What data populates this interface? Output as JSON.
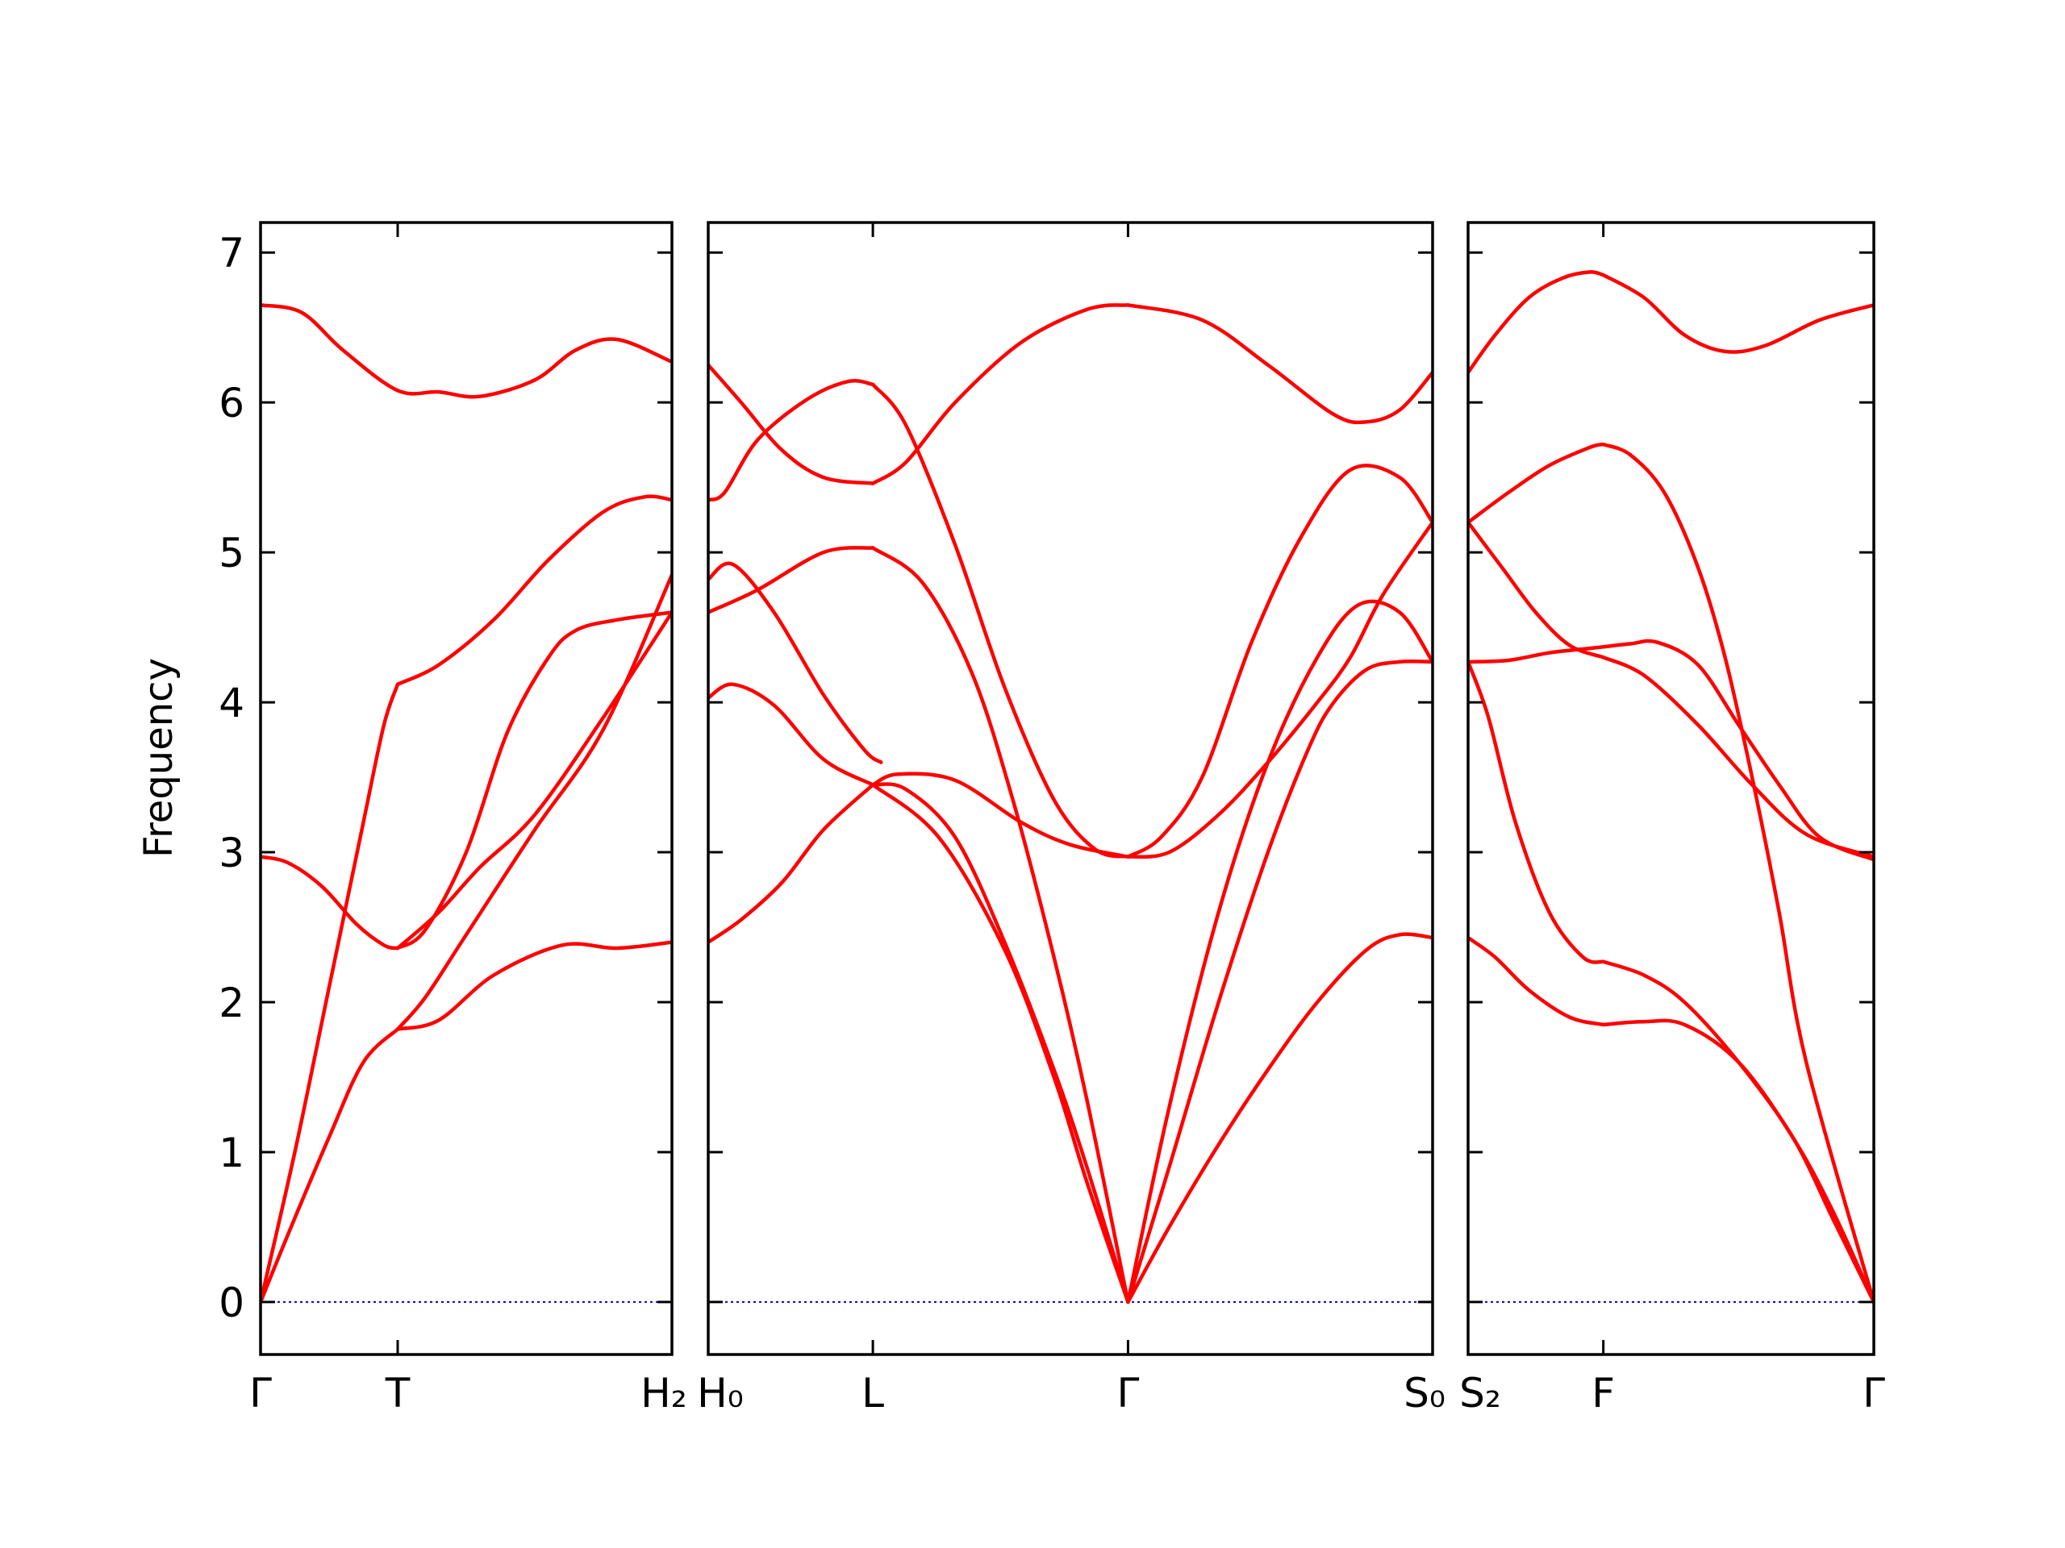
{
  "chart_data": {
    "type": "line",
    "ylabel": "Frequency",
    "ylim": [
      -0.35,
      7.2
    ],
    "yticks": [
      "0",
      "1",
      "2",
      "3",
      "4",
      "5",
      "6",
      "7"
    ],
    "line_color": "#ff0000",
    "zero_line_color": "#0000cc",
    "panels": [
      {
        "xlim": [
          0,
          3
        ],
        "xtick_positions": [
          0,
          1,
          3
        ],
        "xtick_labels": [
          "Γ",
          "T",
          "H₂"
        ],
        "series": [
          {
            "x": [
              0,
              0.2,
              0.5,
              0.75,
              1.0
            ],
            "y": [
              0,
              0.45,
              1.1,
              1.6,
              1.82
            ]
          },
          {
            "x": [
              1.0,
              1.3,
              1.7,
              2.2,
              2.6,
              3.0
            ],
            "y": [
              1.82,
              1.88,
              2.18,
              2.38,
              2.36,
              2.4
            ]
          },
          {
            "x": [
              0,
              0.25,
              0.5,
              0.75,
              0.9,
              1.0
            ],
            "y": [
              0,
              1.0,
              2.1,
              3.2,
              3.85,
              4.12
            ]
          },
          {
            "x": [
              1.0,
              1.3,
              1.7,
              2.1,
              2.5,
              2.8,
              3.0
            ],
            "y": [
              4.12,
              4.25,
              4.55,
              4.95,
              5.27,
              5.37,
              5.35
            ]
          },
          {
            "x": [
              0,
              0.2,
              0.45,
              0.7,
              0.9,
              1.0
            ],
            "y": [
              2.97,
              2.93,
              2.77,
              2.52,
              2.38,
              2.36
            ]
          },
          {
            "x": [
              1.0,
              1.2,
              1.5,
              1.8,
              2.1,
              2.3,
              2.6,
              3.0
            ],
            "y": [
              2.36,
              2.48,
              3.0,
              3.8,
              4.3,
              4.48,
              4.55,
              4.6
            ]
          },
          {
            "x": [
              1.0,
              1.2,
              1.5,
              2.0,
              2.5,
              3.0
            ],
            "y": [
              1.82,
              2.03,
              2.45,
              3.15,
              3.82,
              4.85
            ]
          },
          {
            "x": [
              1.0,
              1.3,
              1.6,
              2.0,
              2.5,
              3.0
            ],
            "y": [
              2.36,
              2.6,
              2.9,
              3.25,
              3.9,
              4.6
            ]
          },
          {
            "x": [
              0,
              0.3,
              0.6,
              1.0,
              1.3,
              1.6,
              2.0,
              2.3,
              2.6,
              3.0
            ],
            "y": [
              6.65,
              6.6,
              6.35,
              6.08,
              6.07,
              6.04,
              6.15,
              6.35,
              6.42,
              6.27
            ]
          }
        ]
      },
      {
        "xlim": [
          0,
          4.4
        ],
        "xtick_positions": [
          0,
          1,
          2.55,
          4.4
        ],
        "xtick_labels": [
          "H₀",
          "L",
          "Γ",
          "S₀"
        ],
        "series": [
          {
            "x": [
              0,
              0.2,
              0.45,
              0.7,
              1.0
            ],
            "y": [
              2.4,
              2.55,
              2.8,
              3.15,
              3.45
            ]
          },
          {
            "x": [
              1.0,
              1.4,
              1.8,
              2.1,
              2.3,
              2.55
            ],
            "y": [
              3.45,
              3.1,
              2.35,
              1.5,
              0.8,
              0
            ]
          },
          {
            "x": [
              0,
              0.15,
              0.4,
              0.7,
              1.0
            ],
            "y": [
              4.03,
              4.12,
              3.98,
              3.62,
              3.45
            ]
          },
          {
            "x": [
              1.0,
              1.2,
              1.5,
              1.8,
              2.1,
              2.3,
              2.55
            ],
            "y": [
              3.45,
              3.42,
              3.1,
              2.4,
              1.55,
              0.9,
              0
            ]
          },
          {
            "x": [
              0,
              0.15,
              0.4,
              0.7,
              0.95,
              1.05
            ],
            "y": [
              4.82,
              4.92,
              4.6,
              4.05,
              3.68,
              3.6
            ]
          },
          {
            "x": [
              1.0,
              1.15,
              1.5,
              1.9,
              2.2,
              2.55
            ],
            "y": [
              3.45,
              3.52,
              3.48,
              3.2,
              3.05,
              2.97
            ]
          },
          {
            "x": [
              0,
              0.3,
              0.7,
              1.0
            ],
            "y": [
              4.6,
              4.75,
              5.0,
              5.03
            ]
          },
          {
            "x": [
              1.0,
              1.3,
              1.6,
              1.85,
              2.1,
              2.3,
              2.55
            ],
            "y": [
              5.03,
              4.8,
              4.2,
              3.35,
              2.3,
              1.35,
              0
            ]
          },
          {
            "x": [
              0,
              0.1,
              0.3,
              0.6,
              0.85,
              1.0
            ],
            "y": [
              5.35,
              5.4,
              5.75,
              6.02,
              6.14,
              6.12
            ]
          },
          {
            "x": [
              1.0,
              1.2,
              1.5,
              1.8,
              2.1,
              2.35,
              2.55
            ],
            "y": [
              6.12,
              5.85,
              5.05,
              4.1,
              3.35,
              3.02,
              2.97
            ]
          },
          {
            "x": [
              0,
              0.2,
              0.45,
              0.7,
              1.0
            ],
            "y": [
              6.25,
              6.0,
              5.68,
              5.5,
              5.46
            ]
          },
          {
            "x": [
              1.0,
              1.2,
              1.5,
              1.9,
              2.3,
              2.55
            ],
            "y": [
              5.46,
              5.6,
              6.0,
              6.4,
              6.62,
              6.65
            ]
          },
          {
            "x": [
              2.55,
              3.0,
              3.4,
              3.8,
              4.0,
              4.2,
              4.4
            ],
            "y": [
              6.65,
              6.55,
              6.25,
              5.92,
              5.87,
              5.95,
              6.2
            ]
          },
          {
            "x": [
              2.55,
              2.75,
              3.0,
              3.3,
              3.6,
              3.9,
              4.2,
              4.4
            ],
            "y": [
              2.97,
              3.1,
              3.5,
              4.4,
              5.1,
              5.55,
              5.5,
              5.2
            ]
          },
          {
            "x": [
              2.55,
              2.8,
              3.1,
              3.4,
              3.7,
              3.95,
              4.2,
              4.4
            ],
            "y": [
              0,
              1.3,
              2.6,
              3.6,
              4.3,
              4.65,
              4.6,
              4.27
            ]
          },
          {
            "x": [
              2.55,
              2.8,
              3.1,
              3.4,
              3.7,
              3.9,
              4.1,
              4.4
            ],
            "y": [
              2.97,
              3.0,
              3.25,
              3.6,
              4.0,
              4.3,
              4.72,
              5.2
            ]
          },
          {
            "x": [
              2.55,
              2.8,
              3.1,
              3.4,
              3.65,
              3.8,
              4.0,
              4.2,
              4.4
            ],
            "y": [
              0,
              0.9,
              2.0,
              3.0,
              3.7,
              4.0,
              4.22,
              4.27,
              4.27
            ]
          },
          {
            "x": [
              2.55,
              2.8,
              3.1,
              3.4,
              3.7,
              4.0,
              4.2,
              4.4
            ],
            "y": [
              0,
              0.5,
              1.05,
              1.55,
              2.0,
              2.35,
              2.45,
              2.43
            ]
          }
        ]
      },
      {
        "xlim": [
          0,
          3
        ],
        "xtick_positions": [
          0,
          1,
          3
        ],
        "xtick_labels": [
          "S₂",
          "F",
          "Γ"
        ],
        "series": [
          {
            "x": [
              0,
              0.2,
              0.45,
              0.7,
              0.9,
              1.0
            ],
            "y": [
              6.2,
              6.45,
              6.7,
              6.83,
              6.87,
              6.85
            ]
          },
          {
            "x": [
              1.0,
              1.3,
              1.6,
              1.9,
              2.2,
              2.6,
              3.0
            ],
            "y": [
              6.85,
              6.7,
              6.45,
              6.34,
              6.38,
              6.55,
              6.65
            ]
          },
          {
            "x": [
              0,
              0.3,
              0.6,
              0.9,
              1.0
            ],
            "y": [
              5.2,
              5.4,
              5.58,
              5.7,
              5.72
            ]
          },
          {
            "x": [
              1.0,
              1.2,
              1.45,
              1.7,
              1.9,
              2.1,
              2.3,
              2.5,
              3.0
            ],
            "y": [
              5.72,
              5.65,
              5.4,
              4.9,
              4.3,
              3.5,
              2.6,
              1.6,
              0
            ]
          },
          {
            "x": [
              0,
              0.25,
              0.5,
              0.75,
              1.0
            ],
            "y": [
              5.2,
              4.9,
              4.6,
              4.38,
              4.3
            ]
          },
          {
            "x": [
              1.0,
              1.3,
              1.7,
              2.1,
              2.5,
              3.0
            ],
            "y": [
              4.3,
              4.18,
              3.85,
              3.45,
              3.12,
              2.97
            ]
          },
          {
            "x": [
              0,
              0.3,
              0.6,
              0.9,
              1.0
            ],
            "y": [
              4.27,
              4.28,
              4.33,
              4.36,
              4.37
            ]
          },
          {
            "x": [
              1.0,
              1.2,
              1.4,
              1.7,
              2.0,
              2.3,
              2.6,
              3.0
            ],
            "y": [
              4.37,
              4.39,
              4.4,
              4.25,
              3.85,
              3.45,
              3.1,
              2.95
            ]
          },
          {
            "x": [
              0,
              0.15,
              0.35,
              0.6,
              0.85,
              1.0
            ],
            "y": [
              4.27,
              3.9,
              3.2,
              2.6,
              2.3,
              2.27
            ]
          },
          {
            "x": [
              1.0,
              1.3,
              1.6,
              2.0,
              2.4,
              2.7,
              3.0
            ],
            "y": [
              2.27,
              2.18,
              2.0,
              1.6,
              1.1,
              0.55,
              0
            ]
          },
          {
            "x": [
              0,
              0.2,
              0.45,
              0.75,
              1.0
            ],
            "y": [
              2.43,
              2.3,
              2.08,
              1.9,
              1.85
            ]
          },
          {
            "x": [
              1.0,
              1.3,
              1.6,
              2.0,
              2.4,
              2.7,
              3.0
            ],
            "y": [
              1.85,
              1.87,
              1.85,
              1.6,
              1.1,
              0.6,
              0
            ]
          }
        ]
      }
    ]
  }
}
